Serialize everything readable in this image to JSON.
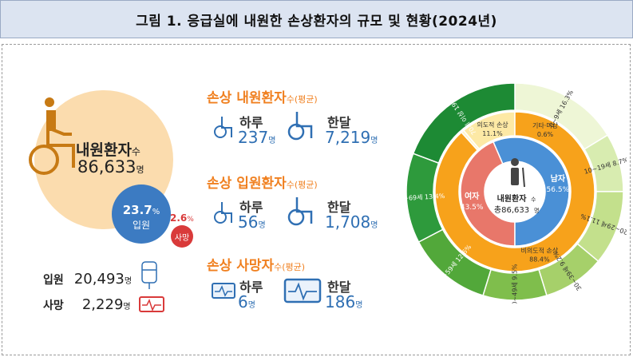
{
  "title": "그림 1. 응급실에 내원한 손상환자의 규모 및 현황(2024년)",
  "left": {
    "main_label": "내원환자",
    "main_label_suffix": "수",
    "main_value": "86,633",
    "main_unit": "명",
    "admit_pct": "23.7",
    "admit_pct_unit": "%",
    "admit_label": "입원",
    "death_pct": "2.6",
    "death_pct_unit": "%",
    "death_label": "사망",
    "admit_row_label": "입원",
    "admit_row_value": "20,493",
    "admit_row_unit": "명",
    "death_row_label": "사망",
    "death_row_value": "2,229",
    "death_row_unit": "명"
  },
  "sections": [
    {
      "title": "손상 내원환자",
      "suffix": "수(평균)",
      "day_label": "하루",
      "day_value": "237",
      "day_unit": "명",
      "month_label": "한달",
      "month_value": "7,219",
      "month_unit": "명"
    },
    {
      "title": "손상 입원환자",
      "suffix": "수(평균)",
      "day_label": "하루",
      "day_value": "56",
      "day_unit": "명",
      "month_label": "한달",
      "month_value": "1,708",
      "month_unit": "명"
    },
    {
      "title": "손상 사망자",
      "suffix": "수(평균)",
      "day_label": "하루",
      "day_value": "6",
      "day_unit": "명",
      "month_label": "한달",
      "month_value": "186",
      "month_unit": "명"
    }
  ],
  "donut": {
    "center_label": "내원환자",
    "center_suffix": "수",
    "center_value": "총86,633",
    "center_unit": "명",
    "sex": [
      {
        "label": "여자",
        "value": "43.5%",
        "share": 43.5,
        "color": "#e8776a"
      },
      {
        "label": "남자",
        "value": "56.5%",
        "share": 56.5,
        "color": "#4a90d6"
      }
    ],
    "intent": [
      {
        "label": "의도적 손상",
        "value": "11.1%",
        "share": 11.1,
        "color": "#fde9a5"
      },
      {
        "label": "기타·미상",
        "value": "0.6%",
        "share": 0.6,
        "color": "#fff6cf"
      },
      {
        "label": "비의도적 손상",
        "value": "88.4%",
        "share": 88.4,
        "color": "#f7a21b"
      }
    ],
    "age": [
      {
        "label": "0~9세",
        "value": "16.3%",
        "share": 16.3,
        "color": "#eef6d6"
      },
      {
        "label": "10~19세",
        "value": "8.7%",
        "share": 8.7,
        "color": "#d8ecb0"
      },
      {
        "label": "20~29세",
        "value": "11.1%",
        "share": 11.1,
        "color": "#c3e08c"
      },
      {
        "label": "30~39세",
        "value": "9.2%",
        "share": 9.2,
        "color": "#a6d06a"
      },
      {
        "label": "40~49세",
        "value": "9.5%",
        "share": 9.5,
        "color": "#7fbe4c"
      },
      {
        "label": "50~59세",
        "value": "12.6%",
        "share": 12.6,
        "color": "#52a83a"
      },
      {
        "label": "60~69세",
        "value": "13.4%",
        "share": 13.4,
        "color": "#2e9a3c"
      },
      {
        "label": "70세 이상",
        "value": "19.3%",
        "share": 19.3,
        "color": "#1d8a34"
      }
    ]
  }
}
